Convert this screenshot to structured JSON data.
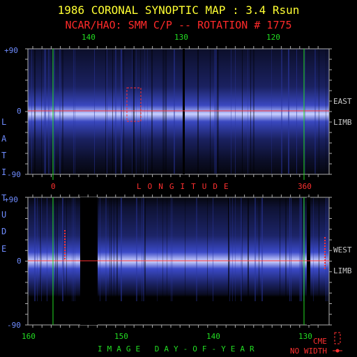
{
  "title": "1986 CORONAL SYNOPTIC MAP : 3.4 Rsun",
  "subtitle": "NCAR/HAO: SMM C/P -- ROTATION # 1775",
  "legend_cme": "CME",
  "legend_no_width": "NO WIDTH",
  "vertical_axis_letters": [
    "L",
    "A",
    "T",
    "I",
    "T",
    "U",
    "D",
    "E"
  ],
  "colors": {
    "title": "#ffff33",
    "subtitle": "#ff2a2a",
    "tick": "#22dd22",
    "latitude": "#6f8cff",
    "equator": "#ff3030",
    "frame": "#b0b0b0",
    "map_band": "#3344cc",
    "bright_band": "#d8ddff"
  },
  "chart_data": [
    {
      "type": "heatmap",
      "panel": "east_limb",
      "side_labels": [
        "EAST",
        "LIMB"
      ],
      "top_axis_ticks": [
        "140",
        "130",
        "120"
      ],
      "bottom_axis_ticks": [
        "0",
        "360"
      ],
      "bottom_axis_label": "LONGITUDE",
      "y_ticks": [
        "+90",
        "0",
        "-90"
      ],
      "ylim": [
        -90,
        90
      ],
      "marker_lines_longitude": [
        0,
        360
      ],
      "bright_band_latitude": 0,
      "notes": "coronal brightness (blue scale) vs longitude and latitude; bright streamer belt near equator"
    },
    {
      "type": "heatmap",
      "panel": "west_limb",
      "side_labels": [
        "WEST",
        "LIMB"
      ],
      "bottom_axis_ticks": [
        "160",
        "150",
        "140",
        "130"
      ],
      "bottom_axis_label": "IMAGE DAY-OF-YEAR",
      "y_ticks": [
        "+90",
        "0",
        "-90"
      ],
      "ylim": [
        -90,
        90
      ],
      "bright_band_latitude": 0,
      "notes": "coronal brightness (blue scale) vs image day-of-year and latitude"
    }
  ]
}
